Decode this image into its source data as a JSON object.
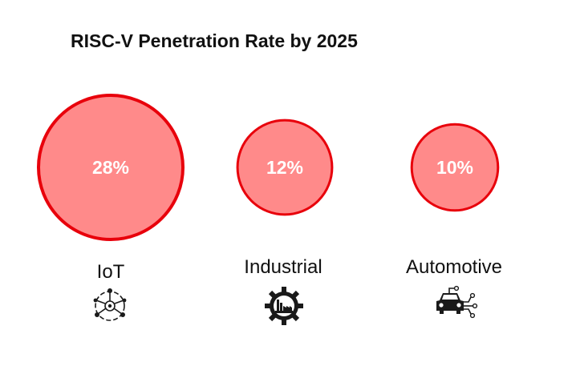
{
  "chart_data": {
    "type": "bubble",
    "title": "RISC-V Penetration Rate by 2025",
    "categories": [
      "IoT",
      "Industrial",
      "Automotive"
    ],
    "values": [
      28,
      12,
      10
    ],
    "unit": "%",
    "data_labels": [
      "28%",
      "12%",
      "10%"
    ],
    "icons": [
      "iot-network-icon",
      "factory-gear-icon",
      "connected-car-icon"
    ]
  },
  "colors": {
    "fill": "#ff8a8a",
    "stroke": "#e8000b",
    "label_text": "#ffffff",
    "icon": "#1a1a1a"
  }
}
